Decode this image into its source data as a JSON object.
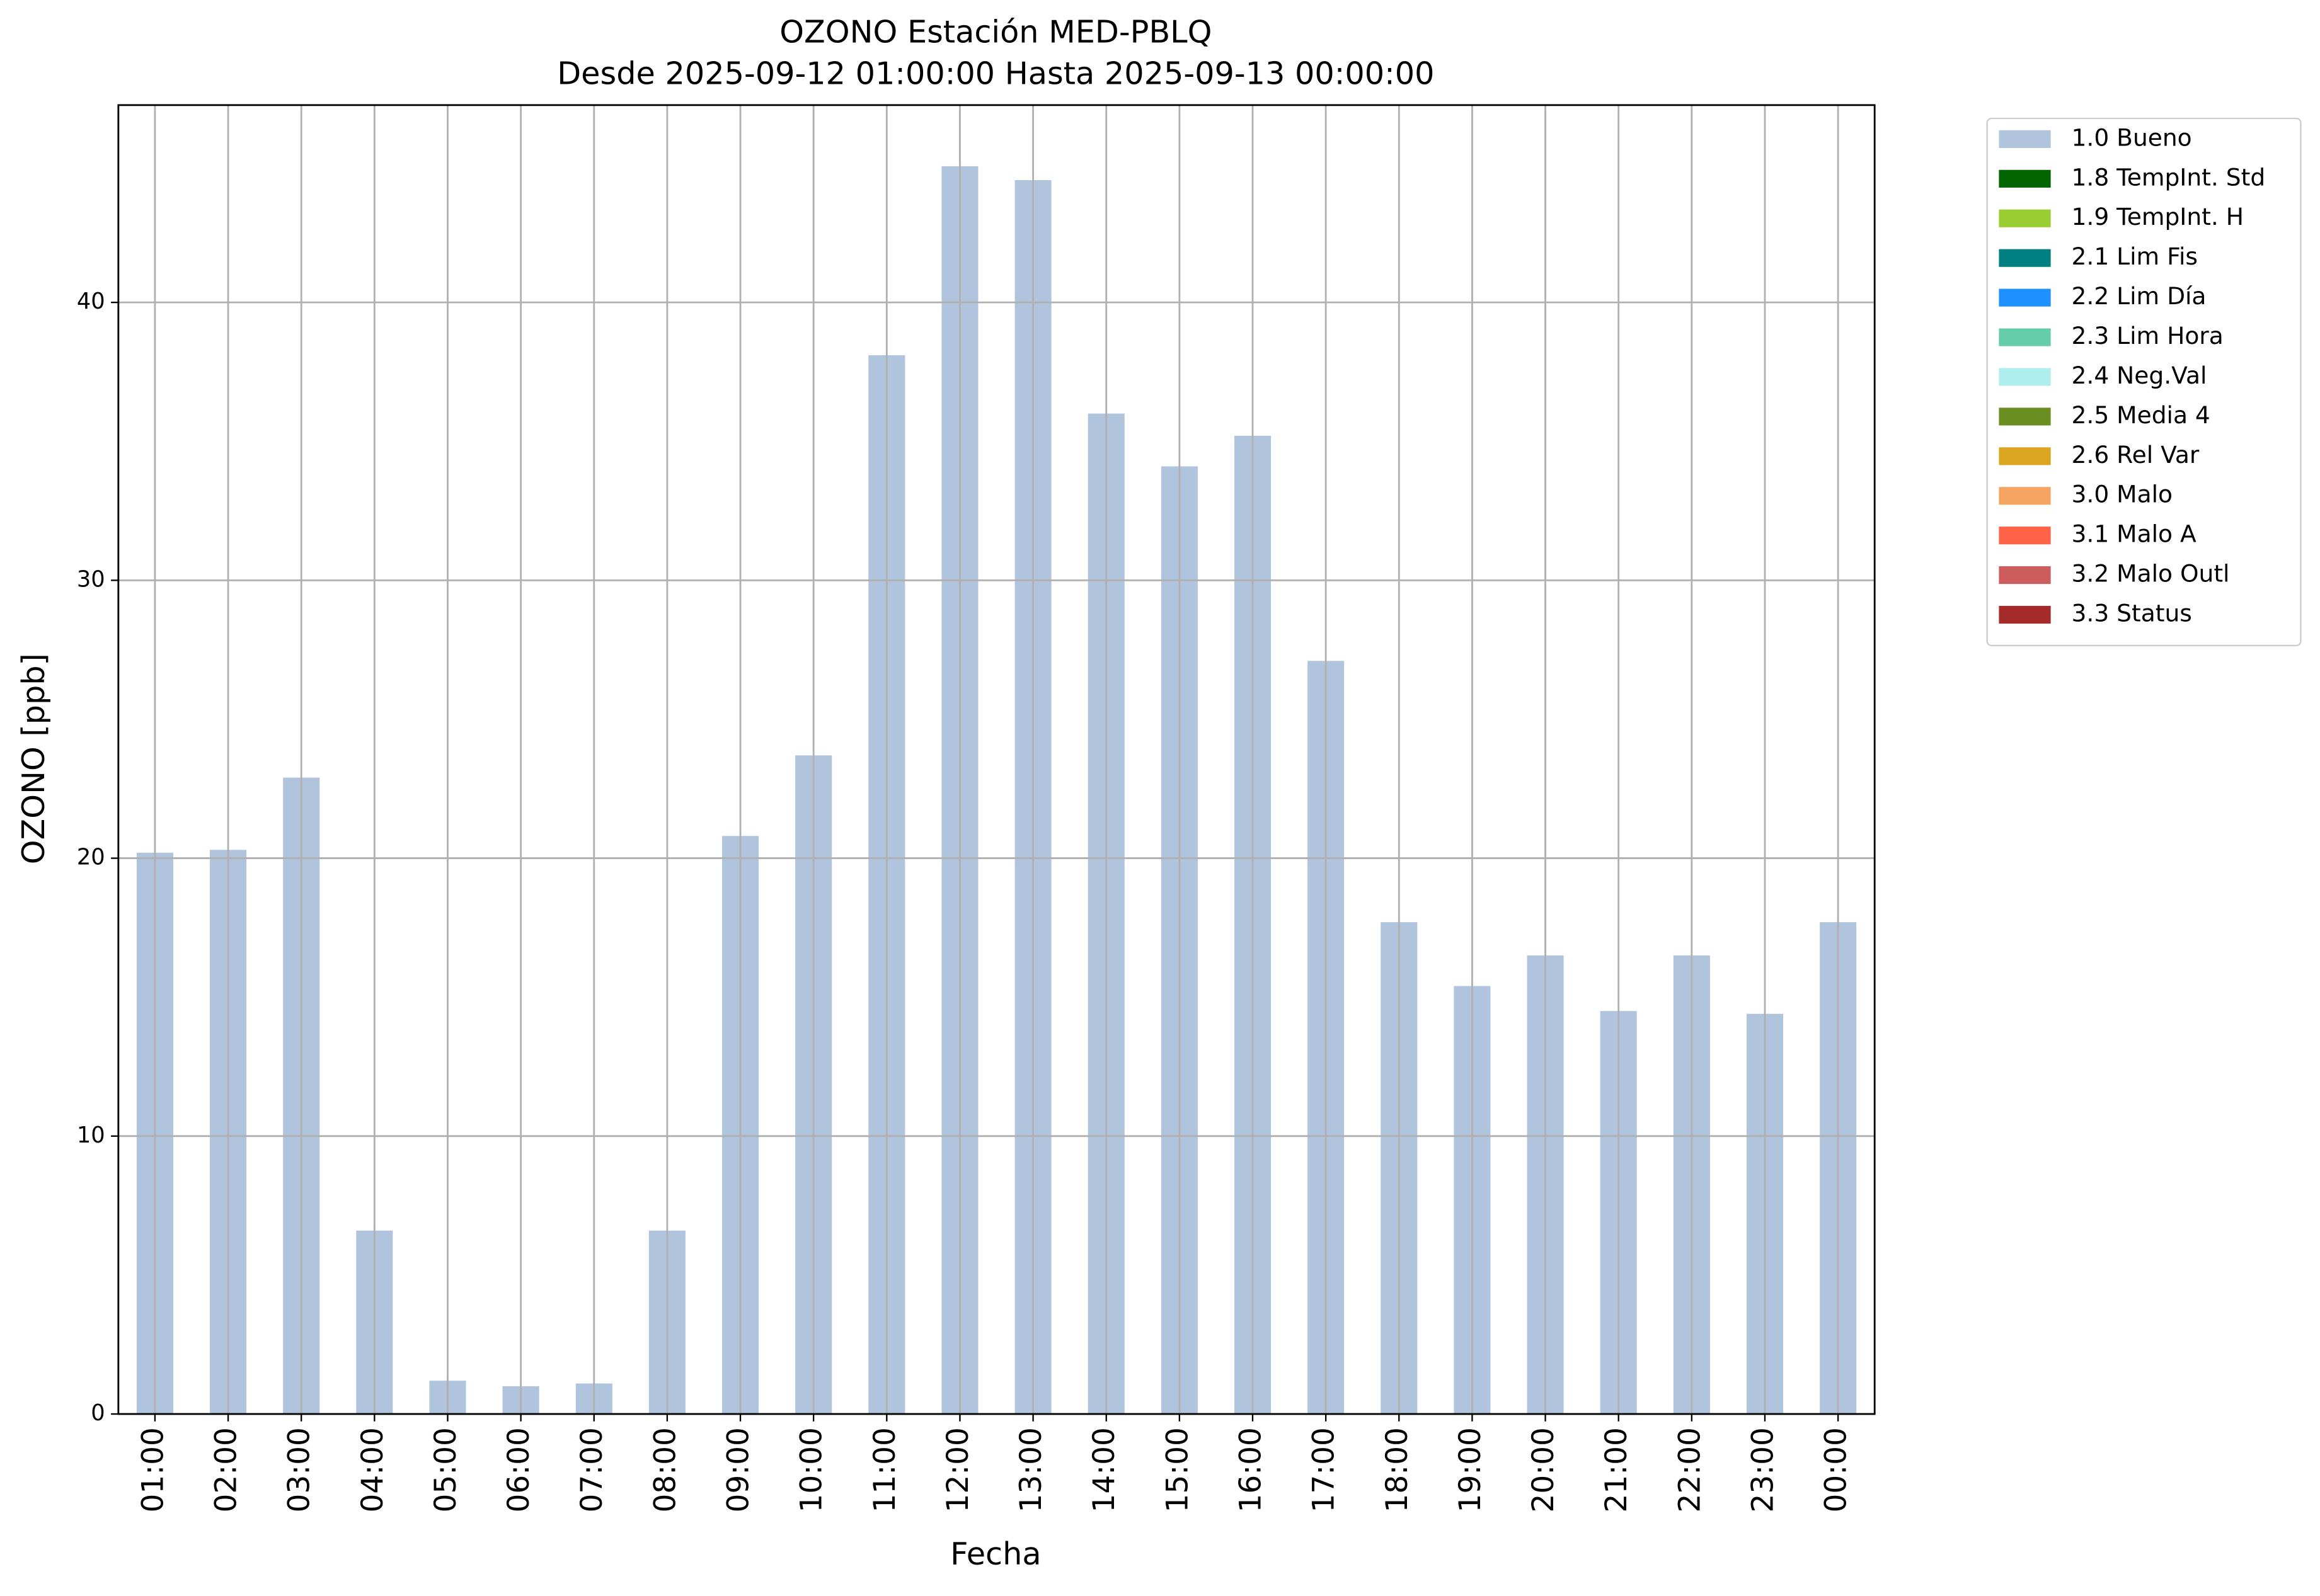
{
  "chart_data": {
    "type": "bar",
    "stacked": true,
    "title": "OZONO Estación MED-PBLQ",
    "subtitle": "Desde 2025-09-12 01:00:00 Hasta 2025-09-13 00:00:00",
    "x_label": "Fecha",
    "y_label": "OZONO [ppb]",
    "categories": [
      "01:00",
      "02:00",
      "03:00",
      "04:00",
      "05:00",
      "06:00",
      "07:00",
      "08:00",
      "09:00",
      "10:00",
      "11:00",
      "12:00",
      "13:00",
      "14:00",
      "15:00",
      "16:00",
      "17:00",
      "18:00",
      "19:00",
      "20:00",
      "21:00",
      "22:00",
      "23:00",
      "00:00"
    ],
    "series": [
      {
        "name": "1.0 Bueno",
        "color": "#b0c4de",
        "values": [
          20.2,
          20.3,
          22.9,
          6.6,
          1.2,
          1.0,
          1.1,
          6.6,
          20.8,
          23.7,
          38.1,
          44.9,
          44.4,
          36.0,
          34.1,
          35.2,
          27.1,
          17.7,
          15.4,
          16.5,
          14.5,
          16.5,
          14.4,
          17.7
        ]
      },
      {
        "name": "1.8 TempInt. Std",
        "color": "#006400",
        "values": [
          null,
          null,
          null,
          null,
          null,
          null,
          null,
          null,
          null,
          null,
          null,
          null,
          null,
          null,
          null,
          null,
          null,
          null,
          null,
          null,
          null,
          null,
          null,
          null
        ]
      },
      {
        "name": "1.9 TempInt. H",
        "color": "#9acd32",
        "values": [
          null,
          null,
          null,
          null,
          null,
          null,
          null,
          null,
          null,
          null,
          null,
          null,
          null,
          null,
          null,
          null,
          null,
          null,
          null,
          null,
          null,
          null,
          null,
          null
        ]
      },
      {
        "name": "2.1 Lim Fis",
        "color": "#008080",
        "values": [
          null,
          null,
          null,
          null,
          null,
          null,
          null,
          null,
          null,
          null,
          null,
          null,
          null,
          null,
          null,
          null,
          null,
          null,
          null,
          null,
          null,
          null,
          null,
          null
        ]
      },
      {
        "name": "2.2 Lim Día",
        "color": "#1e90ff",
        "values": [
          null,
          null,
          null,
          null,
          null,
          null,
          null,
          null,
          null,
          null,
          null,
          null,
          null,
          null,
          null,
          null,
          null,
          null,
          null,
          null,
          null,
          null,
          null,
          null
        ]
      },
      {
        "name": "2.3 Lim Hora",
        "color": "#66cdaa",
        "values": [
          null,
          null,
          null,
          null,
          null,
          null,
          null,
          null,
          null,
          null,
          null,
          null,
          null,
          null,
          null,
          null,
          null,
          null,
          null,
          null,
          null,
          null,
          null,
          null
        ]
      },
      {
        "name": "2.4 Neg.Val",
        "color": "#afeeee",
        "values": [
          null,
          null,
          null,
          null,
          null,
          null,
          null,
          null,
          null,
          null,
          null,
          null,
          null,
          null,
          null,
          null,
          null,
          null,
          null,
          null,
          null,
          null,
          null,
          null
        ]
      },
      {
        "name": "2.5 Media 4",
        "color": "#6b8e23",
        "values": [
          null,
          null,
          null,
          null,
          null,
          null,
          null,
          null,
          null,
          null,
          null,
          null,
          null,
          null,
          null,
          null,
          null,
          null,
          null,
          null,
          null,
          null,
          null,
          null
        ]
      },
      {
        "name": "2.6 Rel Var",
        "color": "#daa520",
        "values": [
          null,
          null,
          null,
          null,
          null,
          null,
          null,
          null,
          null,
          null,
          null,
          null,
          null,
          null,
          null,
          null,
          null,
          null,
          null,
          null,
          null,
          null,
          null,
          null
        ]
      },
      {
        "name": "3.0 Malo",
        "color": "#f4a460",
        "values": [
          null,
          null,
          null,
          null,
          null,
          null,
          null,
          null,
          null,
          null,
          null,
          null,
          null,
          null,
          null,
          null,
          null,
          null,
          null,
          null,
          null,
          null,
          null,
          null
        ]
      },
      {
        "name": "3.1 Malo A",
        "color": "#ff6347",
        "values": [
          null,
          null,
          null,
          null,
          null,
          null,
          null,
          null,
          null,
          null,
          null,
          null,
          null,
          null,
          null,
          null,
          null,
          null,
          null,
          null,
          null,
          null,
          null,
          null
        ]
      },
      {
        "name": "3.2 Malo Outl",
        "color": "#cd5c5c",
        "values": [
          null,
          null,
          null,
          null,
          null,
          null,
          null,
          null,
          null,
          null,
          null,
          null,
          null,
          null,
          null,
          null,
          null,
          null,
          null,
          null,
          null,
          null,
          null,
          null
        ]
      },
      {
        "name": "3.3 Status",
        "color": "#a52a2a",
        "values": [
          null,
          null,
          null,
          null,
          null,
          null,
          null,
          null,
          null,
          null,
          null,
          null,
          null,
          null,
          null,
          null,
          null,
          null,
          null,
          null,
          null,
          null,
          null,
          null
        ]
      }
    ],
    "ylim": [
      0,
      47.1
    ],
    "yticks": [
      0,
      10,
      20,
      30,
      40
    ],
    "grid": true,
    "legend": "outside upper right"
  }
}
